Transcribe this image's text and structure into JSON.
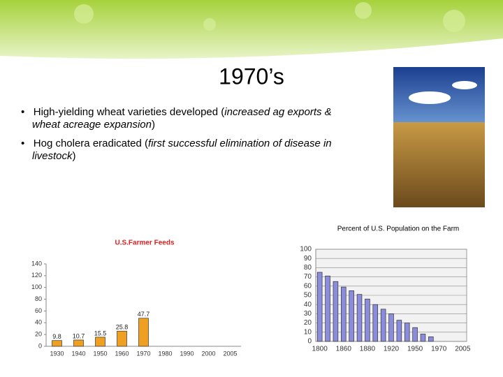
{
  "title": "1970’s",
  "bullets": [
    [
      "High-yielding wheat varieties developed (",
      "increased ag exports & wheat acreage expansion",
      ")"
    ],
    [
      "Hog cholera eradicated (",
      "first successful elimination of disease in livestock",
      ")"
    ]
  ],
  "chart_data": [
    {
      "type": "bar",
      "title": "U.S.Farmer Feeds",
      "categories": [
        "1930",
        "1940",
        "1950",
        "1960",
        "1970",
        "1980",
        "1990",
        "2000",
        "2005"
      ],
      "values": [
        9.8,
        10.7,
        15.5,
        25.8,
        47.7,
        null,
        null,
        null,
        null
      ],
      "color": "#f0a020",
      "ylim": [
        0,
        140
      ],
      "yticks": [
        0,
        20,
        40,
        60,
        80,
        100,
        120,
        140
      ],
      "grid": false,
      "value_labels_shown": true
    },
    {
      "type": "bar",
      "title": "Percent of U.S. Population on the Farm",
      "categories": [
        "1800",
        null,
        null,
        "1860",
        null,
        null,
        "1880",
        null,
        null,
        "1920",
        null,
        null,
        "1950",
        null,
        null,
        "1970",
        null,
        null,
        "2005"
      ],
      "values": [
        75,
        71,
        65,
        59,
        55,
        51,
        46,
        40,
        35,
        30,
        23,
        20,
        15,
        8,
        5,
        null,
        null,
        null,
        null
      ],
      "color": "#8c8cdc",
      "ylim": [
        0,
        100
      ],
      "yticks": [
        0,
        10,
        20,
        30,
        40,
        50,
        60,
        70,
        80,
        90,
        100
      ],
      "grid": true,
      "value_labels_shown": false
    }
  ]
}
